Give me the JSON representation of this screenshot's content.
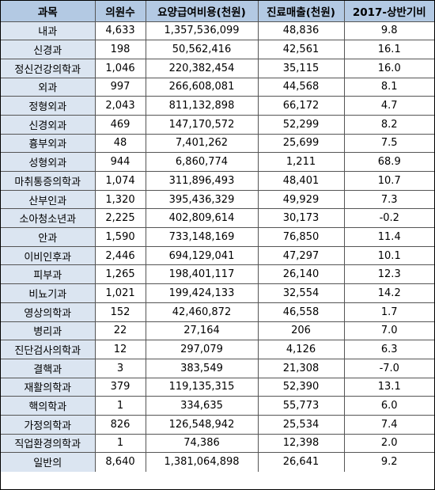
{
  "table": {
    "headers": [
      "과목",
      "의원수",
      "요양급여비용(천원)",
      "진료매출(천원)",
      "2017-상반기비"
    ],
    "rows": [
      [
        "내과",
        "4,633",
        "1,357,536,099",
        "48,836",
        "9.8"
      ],
      [
        "신경과",
        "198",
        "50,562,416",
        "42,561",
        "16.1"
      ],
      [
        "정신건강의학과",
        "1,046",
        "220,382,454",
        "35,115",
        "16.0"
      ],
      [
        "외과",
        "997",
        "266,608,081",
        "44,568",
        "8.1"
      ],
      [
        "정형외과",
        "2,043",
        "811,132,898",
        "66,172",
        "4.7"
      ],
      [
        "신경외과",
        "469",
        "147,170,572",
        "52,299",
        "8.2"
      ],
      [
        "흉부외과",
        "48",
        "7,401,262",
        "25,699",
        "7.5"
      ],
      [
        "성형외과",
        "944",
        "6,860,774",
        "1,211",
        "68.9"
      ],
      [
        "마취통증의학과",
        "1,074",
        "311,896,493",
        "48,401",
        "10.7"
      ],
      [
        "산부인과",
        "1,320",
        "395,436,329",
        "49,929",
        "7.3"
      ],
      [
        "소아청소년과",
        "2,225",
        "402,809,614",
        "30,173",
        "-0.2"
      ],
      [
        "안과",
        "1,590",
        "733,148,169",
        "76,850",
        "11.4"
      ],
      [
        "이비인후과",
        "2,446",
        "694,129,041",
        "47,297",
        "10.1"
      ],
      [
        "피부과",
        "1,265",
        "198,401,117",
        "26,140",
        "12.3"
      ],
      [
        "비뇨기과",
        "1,021",
        "199,424,133",
        "32,554",
        "14.2"
      ],
      [
        "영상의학과",
        "152",
        "42,460,872",
        "46,558",
        "1.7"
      ],
      [
        "병리과",
        "22",
        "27,164",
        "206",
        "7.0"
      ],
      [
        "진단검사의학과",
        "12",
        "297,079",
        "4,126",
        "6.3"
      ],
      [
        "결핵과",
        "3",
        "383,549",
        "21,308",
        "-7.0"
      ],
      [
        "재활의학과",
        "379",
        "119,135,315",
        "52,390",
        "13.1"
      ],
      [
        "핵의학과",
        "1",
        "334,635",
        "55,773",
        "6.0"
      ],
      [
        "가정의학과",
        "826",
        "126,548,942",
        "25,534",
        "7.4"
      ],
      [
        "직업환경의학과",
        "1",
        "74,386",
        "12,398",
        "2.0"
      ],
      [
        "일반의",
        "8,640",
        "1,381,064,898",
        "26,641",
        "9.2"
      ]
    ]
  },
  "colors": {
    "header_bg": "#b3c9e3",
    "dept_bg": "#dbe5f1",
    "cell_bg": "#ffffff",
    "border": "#555555"
  }
}
